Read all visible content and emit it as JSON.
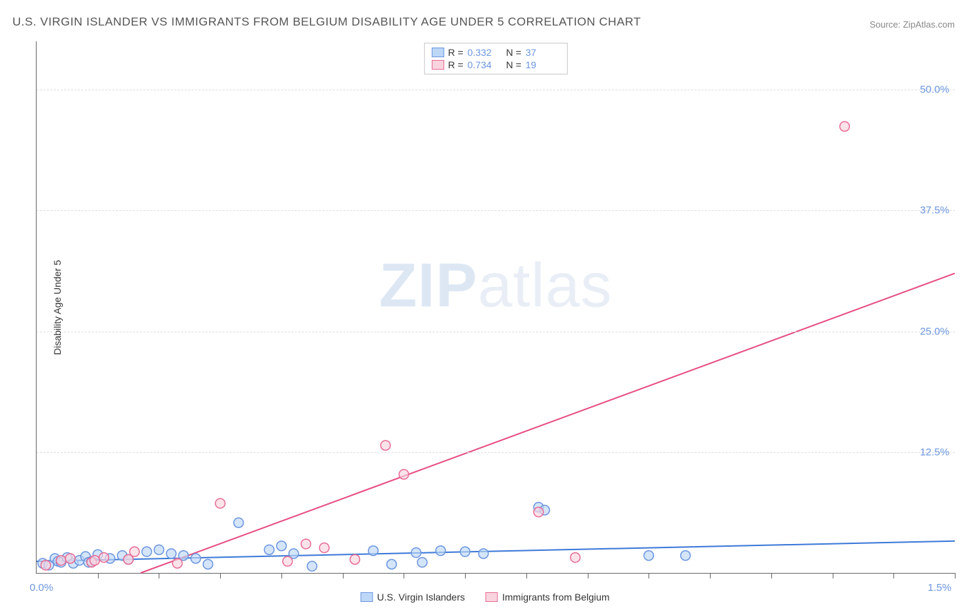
{
  "title": "U.S. VIRGIN ISLANDER VS IMMIGRANTS FROM BELGIUM DISABILITY AGE UNDER 5 CORRELATION CHART",
  "source": "Source: ZipAtlas.com",
  "y_axis_label": "Disability Age Under 5",
  "watermark_bold": "ZIP",
  "watermark_light": "atlas",
  "chart": {
    "type": "scatter",
    "xlim": [
      0.0,
      1.5
    ],
    "ylim": [
      0.0,
      55.0
    ],
    "x_origin_label": "0.0%",
    "x_max_label": "1.5%",
    "y_ticks": [
      12.5,
      25.0,
      37.5,
      50.0
    ],
    "y_tick_labels": [
      "12.5%",
      "25.0%",
      "37.5%",
      "50.0%"
    ],
    "x_tick_step_count": 15,
    "grid_color": "#dddddd",
    "axis_color": "#666666",
    "background_color": "#ffffff",
    "tick_label_color": "#6b95e0",
    "marker_radius": 7,
    "marker_stroke_width": 1.5,
    "trend_line_width": 2
  },
  "series": [
    {
      "key": "usvi",
      "name": "U.S. Virgin Islanders",
      "legend_name": "U.S. Virgin Islanders",
      "fill_color": "#bdd7f6",
      "stroke_color": "#6b95e0",
      "line_color": "#3b78d8",
      "R": "0.332",
      "N": "37",
      "trend": {
        "x1": 0.0,
        "y1": 1.2,
        "x2": 1.5,
        "y2": 3.3
      },
      "points": [
        {
          "x": 0.01,
          "y": 1.0
        },
        {
          "x": 0.02,
          "y": 0.8
        },
        {
          "x": 0.03,
          "y": 1.5
        },
        {
          "x": 0.035,
          "y": 1.2
        },
        {
          "x": 0.04,
          "y": 1.1
        },
        {
          "x": 0.05,
          "y": 1.6
        },
        {
          "x": 0.06,
          "y": 1.0
        },
        {
          "x": 0.07,
          "y": 1.3
        },
        {
          "x": 0.08,
          "y": 1.7
        },
        {
          "x": 0.085,
          "y": 1.1
        },
        {
          "x": 0.09,
          "y": 1.2
        },
        {
          "x": 0.1,
          "y": 1.9
        },
        {
          "x": 0.12,
          "y": 1.5
        },
        {
          "x": 0.14,
          "y": 1.8
        },
        {
          "x": 0.15,
          "y": 1.4
        },
        {
          "x": 0.18,
          "y": 2.2
        },
        {
          "x": 0.2,
          "y": 2.4
        },
        {
          "x": 0.22,
          "y": 2.0
        },
        {
          "x": 0.24,
          "y": 1.8
        },
        {
          "x": 0.26,
          "y": 1.5
        },
        {
          "x": 0.28,
          "y": 0.9
        },
        {
          "x": 0.33,
          "y": 5.2
        },
        {
          "x": 0.38,
          "y": 2.4
        },
        {
          "x": 0.4,
          "y": 2.8
        },
        {
          "x": 0.42,
          "y": 2.0
        },
        {
          "x": 0.45,
          "y": 0.7
        },
        {
          "x": 0.55,
          "y": 2.3
        },
        {
          "x": 0.58,
          "y": 0.9
        },
        {
          "x": 0.62,
          "y": 2.1
        },
        {
          "x": 0.63,
          "y": 1.1
        },
        {
          "x": 0.66,
          "y": 2.3
        },
        {
          "x": 0.7,
          "y": 2.2
        },
        {
          "x": 0.73,
          "y": 2.0
        },
        {
          "x": 0.82,
          "y": 6.8
        },
        {
          "x": 0.83,
          "y": 6.5
        },
        {
          "x": 1.0,
          "y": 1.8
        },
        {
          "x": 1.06,
          "y": 1.8
        }
      ]
    },
    {
      "key": "belgium",
      "name": "Immigrants from Belgium",
      "legend_name": "Immigrants from Belgium",
      "fill_color": "#f9d4de",
      "stroke_color": "#e76b94",
      "line_color": "#e64d82",
      "R": "0.734",
      "N": "19",
      "trend": {
        "x1": 0.17,
        "y1": 0.0,
        "x2": 1.5,
        "y2": 31.0
      },
      "points": [
        {
          "x": 0.015,
          "y": 0.8
        },
        {
          "x": 0.04,
          "y": 1.3
        },
        {
          "x": 0.055,
          "y": 1.5
        },
        {
          "x": 0.09,
          "y": 1.1
        },
        {
          "x": 0.095,
          "y": 1.3
        },
        {
          "x": 0.11,
          "y": 1.6
        },
        {
          "x": 0.15,
          "y": 1.4
        },
        {
          "x": 0.16,
          "y": 2.2
        },
        {
          "x": 0.23,
          "y": 1.0
        },
        {
          "x": 0.3,
          "y": 7.2
        },
        {
          "x": 0.41,
          "y": 1.2
        },
        {
          "x": 0.44,
          "y": 3.0
        },
        {
          "x": 0.47,
          "y": 2.6
        },
        {
          "x": 0.52,
          "y": 1.4
        },
        {
          "x": 0.57,
          "y": 13.2
        },
        {
          "x": 0.6,
          "y": 10.2
        },
        {
          "x": 0.82,
          "y": 6.3
        },
        {
          "x": 0.88,
          "y": 1.6
        },
        {
          "x": 1.32,
          "y": 46.2
        }
      ]
    }
  ],
  "bottom_legend": {
    "items": [
      {
        "series": "usvi"
      },
      {
        "series": "belgium"
      }
    ]
  }
}
